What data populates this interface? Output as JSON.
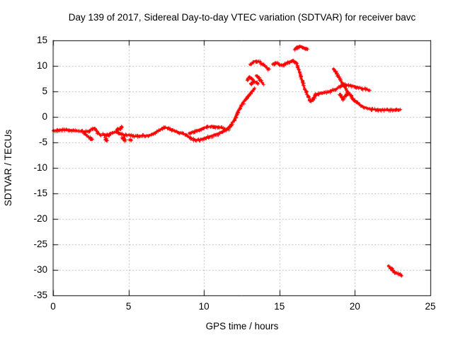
{
  "window": {
    "title": "Day 139 of 2017, Sidereal Day-to-day VTEC variation (SDTVAR) for receiver bavc"
  },
  "chart_data": {
    "type": "scatter",
    "title": "Day 139 of 2017, Sidereal Day-to-day VTEC variation (SDTVAR) for receiver bavc",
    "xlabel": "GPS time / hours",
    "ylabel": "SDTVAR / TECUs",
    "xlim": [
      0,
      25
    ],
    "ylim": [
      -35,
      15
    ],
    "xticks": [
      0,
      5,
      10,
      15,
      20,
      25
    ],
    "yticks": [
      15,
      10,
      5,
      0,
      -5,
      -10,
      -15,
      -20,
      -25,
      -30,
      -35
    ],
    "grid": true,
    "grid_style": "dotted",
    "legend": "none",
    "marker": "plus",
    "color": "#ff0000",
    "grid_color": "#a8a8a8",
    "axis_color": "#000000",
    "background": "#ffffff",
    "series": [
      {
        "name": "arc-0h-to-3h",
        "points": [
          [
            0,
            -2.7
          ],
          [
            0.3,
            -2.6
          ],
          [
            0.6,
            -2.5
          ],
          [
            0.9,
            -2.5
          ],
          [
            1.2,
            -2.6
          ],
          [
            1.5,
            -2.7
          ],
          [
            1.8,
            -2.8
          ],
          [
            2.1,
            -2.9
          ],
          [
            2.35,
            -2.8
          ],
          [
            2.55,
            -2.4
          ],
          [
            2.7,
            -2.2
          ],
          [
            2.85,
            -2.5
          ],
          [
            3.0,
            -3.2
          ],
          [
            3.15,
            -3.5
          ]
        ]
      },
      {
        "name": "spur-descending-2h",
        "points": [
          [
            2.0,
            -3.1
          ],
          [
            2.2,
            -3.6
          ],
          [
            2.4,
            -4.1
          ],
          [
            2.6,
            -4.4
          ]
        ]
      },
      {
        "name": "arc-3h-to-5h",
        "points": [
          [
            3.3,
            -3.4
          ],
          [
            3.5,
            -3.6
          ],
          [
            3.7,
            -3.4
          ],
          [
            3.9,
            -3.2
          ],
          [
            4.1,
            -3.0
          ],
          [
            4.3,
            -3.1
          ],
          [
            4.5,
            -3.3
          ],
          [
            4.7,
            -3.5
          ],
          [
            4.9,
            -3.6
          ]
        ]
      },
      {
        "name": "arc-5h-to-9h-hump",
        "points": [
          [
            5.0,
            -3.5
          ],
          [
            5.3,
            -3.8
          ],
          [
            5.6,
            -3.8
          ],
          [
            5.9,
            -3.7
          ],
          [
            6.2,
            -3.7
          ],
          [
            6.5,
            -3.5
          ],
          [
            6.8,
            -3.0
          ],
          [
            7.1,
            -2.5
          ],
          [
            7.35,
            -2.0
          ],
          [
            7.6,
            -2.2
          ],
          [
            7.9,
            -2.6
          ],
          [
            8.2,
            -2.9
          ],
          [
            8.5,
            -3.2
          ],
          [
            8.8,
            -3.5
          ]
        ]
      },
      {
        "name": "valley-lower-strand-9h-to-12h",
        "points": [
          [
            8.8,
            -3.6
          ],
          [
            9.1,
            -4.1
          ],
          [
            9.4,
            -4.5
          ],
          [
            9.7,
            -4.5
          ],
          [
            10.0,
            -4.2
          ],
          [
            10.3,
            -3.9
          ],
          [
            10.6,
            -3.6
          ],
          [
            10.9,
            -3.3
          ],
          [
            11.2,
            -2.9
          ],
          [
            11.5,
            -2.4
          ],
          [
            11.8,
            -1.5
          ],
          [
            12.0,
            -0.6
          ]
        ]
      },
      {
        "name": "valley-upper-strand-9h-to-11.6h",
        "points": [
          [
            9.0,
            -3.2
          ],
          [
            9.4,
            -2.8
          ],
          [
            9.8,
            -2.4
          ],
          [
            10.2,
            -2.0
          ],
          [
            10.6,
            -1.8
          ],
          [
            11.0,
            -2.0
          ],
          [
            11.4,
            -2.4
          ],
          [
            11.6,
            -2.3
          ]
        ]
      },
      {
        "name": "steep-rise-12h-to-13.3h",
        "points": [
          [
            12.0,
            -0.6
          ],
          [
            12.2,
            0.9
          ],
          [
            12.4,
            1.9
          ],
          [
            12.6,
            2.9
          ],
          [
            12.8,
            3.7
          ],
          [
            13.0,
            4.4
          ],
          [
            13.2,
            5.1
          ],
          [
            13.35,
            5.6
          ]
        ]
      },
      {
        "name": "knot-13h-left",
        "points": [
          [
            12.85,
            7.3
          ],
          [
            13.0,
            7.9
          ],
          [
            13.15,
            7.5
          ],
          [
            13.3,
            7.0
          ]
        ]
      },
      {
        "name": "knot-13h-right",
        "points": [
          [
            13.45,
            8.1
          ],
          [
            13.6,
            7.7
          ],
          [
            13.75,
            7.1
          ],
          [
            13.9,
            6.5
          ]
        ]
      },
      {
        "name": "arc-13h-to-14.3h",
        "points": [
          [
            13.05,
            10.2
          ],
          [
            13.25,
            10.7
          ],
          [
            13.45,
            11.0
          ],
          [
            13.65,
            10.8
          ],
          [
            13.85,
            10.4
          ],
          [
            14.05,
            9.9
          ],
          [
            14.3,
            9.3
          ]
        ]
      },
      {
        "name": "plateau-and-fall-14.5h-to-17h",
        "points": [
          [
            14.55,
            10.3
          ],
          [
            14.75,
            10.7
          ],
          [
            14.95,
            10.3
          ],
          [
            15.15,
            10.1
          ],
          [
            15.35,
            10.4
          ],
          [
            15.55,
            10.7
          ],
          [
            15.75,
            10.9
          ],
          [
            15.95,
            11.0
          ],
          [
            16.1,
            10.7
          ],
          [
            16.25,
            9.5
          ],
          [
            16.4,
            8.0
          ],
          [
            16.55,
            6.5
          ],
          [
            16.7,
            5.3
          ],
          [
            16.85,
            4.3
          ]
        ]
      },
      {
        "name": "top-arc-16h",
        "points": [
          [
            16.0,
            13.3
          ],
          [
            16.15,
            13.7
          ],
          [
            16.35,
            13.9
          ],
          [
            16.55,
            13.7
          ],
          [
            16.7,
            13.5
          ],
          [
            16.85,
            13.4
          ]
        ]
      },
      {
        "name": "band-17.3h-to-19.2h",
        "points": [
          [
            17.35,
            4.4
          ],
          [
            17.6,
            4.6
          ],
          [
            17.85,
            4.7
          ],
          [
            18.1,
            4.8
          ],
          [
            18.35,
            5.0
          ],
          [
            18.6,
            5.3
          ],
          [
            18.85,
            5.6
          ],
          [
            19.05,
            6.1
          ],
          [
            19.2,
            6.5
          ]
        ]
      },
      {
        "name": "upper-branch-19.2h-to-21h",
        "points": [
          [
            19.2,
            6.5
          ],
          [
            19.45,
            6.3
          ],
          [
            19.7,
            6.1
          ],
          [
            19.95,
            6.0
          ],
          [
            20.2,
            5.8
          ],
          [
            20.45,
            5.6
          ],
          [
            20.7,
            5.4
          ],
          [
            20.95,
            5.2
          ]
        ]
      },
      {
        "name": "steep-descent-18.5h-to-23h",
        "points": [
          [
            18.55,
            9.4
          ],
          [
            18.7,
            8.9
          ],
          [
            18.85,
            8.2
          ],
          [
            19.0,
            7.4
          ],
          [
            19.15,
            6.7
          ],
          [
            19.3,
            5.9
          ],
          [
            19.5,
            5.0
          ],
          [
            19.7,
            4.2
          ],
          [
            19.9,
            3.5
          ],
          [
            20.1,
            2.9
          ],
          [
            20.3,
            2.4
          ],
          [
            20.55,
            2.0
          ],
          [
            20.8,
            1.7
          ],
          [
            21.1,
            1.5
          ],
          [
            21.5,
            1.45
          ],
          [
            21.9,
            1.4
          ],
          [
            22.3,
            1.4
          ],
          [
            22.7,
            1.4
          ],
          [
            23.0,
            1.4
          ]
        ]
      },
      {
        "name": "outlier-arc-22h-to-23h",
        "points": [
          [
            22.2,
            -29.2
          ],
          [
            22.35,
            -29.6
          ],
          [
            22.5,
            -30.0
          ],
          [
            22.65,
            -30.4
          ],
          [
            22.8,
            -30.7
          ],
          [
            22.95,
            -30.9
          ],
          [
            23.1,
            -31.1
          ]
        ]
      }
    ],
    "scatter_clusters": [
      {
        "name": "cluster-4.5h",
        "points": [
          [
            3.45,
            -4.3
          ],
          [
            3.55,
            -4.6
          ],
          [
            4.25,
            -2.4
          ],
          [
            4.45,
            -2.2
          ],
          [
            4.55,
            -1.9
          ],
          [
            4.6,
            -4.2
          ],
          [
            4.75,
            -4.5
          ],
          [
            5.1,
            -4.4
          ]
        ]
      },
      {
        "name": "cluster-13.3h",
        "points": [
          [
            13.28,
            6.9
          ],
          [
            13.1,
            6.5
          ],
          [
            13.5,
            6.7
          ]
        ]
      },
      {
        "name": "cluster-dip-17h",
        "points": [
          [
            16.9,
            3.9
          ],
          [
            16.97,
            3.4
          ],
          [
            17.05,
            3.1
          ],
          [
            17.15,
            3.4
          ],
          [
            17.25,
            3.8
          ],
          [
            17.35,
            4.2
          ]
        ]
      },
      {
        "name": "cluster-spike-19.2h",
        "points": [
          [
            19.0,
            4.5
          ],
          [
            19.1,
            4.0
          ],
          [
            19.2,
            3.5
          ],
          [
            19.3,
            3.9
          ],
          [
            19.4,
            4.4
          ]
        ]
      }
    ]
  }
}
